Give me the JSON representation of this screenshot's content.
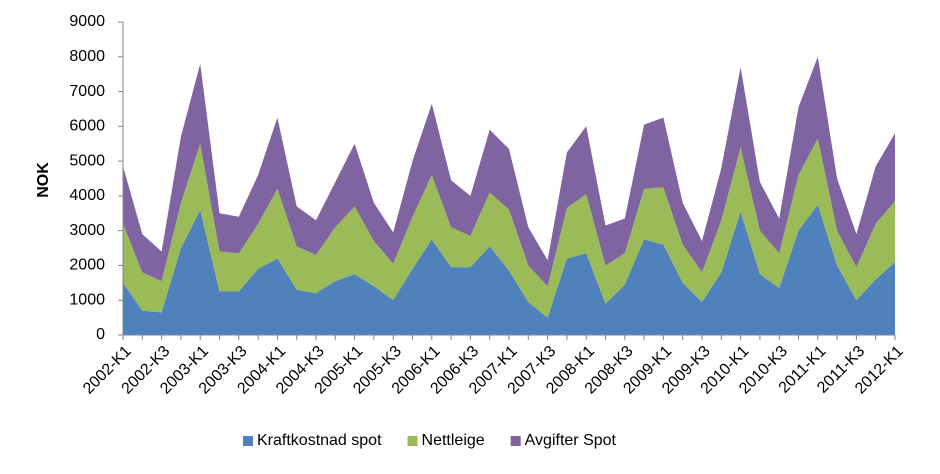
{
  "chart_data": {
    "type": "stacked-area",
    "y_label": "NOK",
    "categories": [
      "2002-K1",
      null,
      "2002-K3",
      null,
      "2003-K1",
      null,
      "2003-K3",
      null,
      "2004-K1",
      null,
      "2004-K3",
      null,
      "2005-K1",
      null,
      "2005-K3",
      null,
      "2006-K1",
      null,
      "2006-K3",
      null,
      "2007-K1",
      null,
      "2007-K3",
      null,
      "2008-K1",
      null,
      "2008-K3",
      null,
      "2009-K1",
      null,
      "2009-K3",
      null,
      "2010-K1",
      null,
      "2010-K3",
      null,
      "2011-K1",
      null,
      "2011-K3",
      null,
      "2012-K1"
    ],
    "series": [
      {
        "name": "Kraftkostnad spot",
        "color": "#4f81bd",
        "values": [
          1500,
          700,
          650,
          2500,
          3600,
          1250,
          1250,
          1900,
          2200,
          1300,
          1200,
          1550,
          1750,
          1400,
          1000,
          1900,
          2750,
          1950,
          1950,
          2550,
          1850,
          950,
          500,
          2200,
          2350,
          900,
          1450,
          2750,
          2600,
          1500,
          950,
          1800,
          3550,
          1750,
          1350,
          3000,
          3750,
          2000,
          1000,
          1600,
          2100
        ]
      },
      {
        "name": "Nettleige",
        "color": "#9bbb59",
        "values": [
          1700,
          1100,
          900,
          1300,
          1900,
          1150,
          1100,
          1300,
          2000,
          1250,
          1100,
          1550,
          1950,
          1300,
          1050,
          1500,
          1850,
          1150,
          900,
          1550,
          1750,
          1050,
          900,
          1450,
          1700,
          1100,
          900,
          1450,
          1650,
          1100,
          850,
          1500,
          1850,
          1250,
          1000,
          1600,
          1900,
          1000,
          950,
          1600,
          1750
        ]
      },
      {
        "name": "Avgifter Spot",
        "color": "#8064a2",
        "values": [
          1650,
          1100,
          850,
          1900,
          2300,
          1100,
          1050,
          1400,
          2050,
          1150,
          1000,
          1300,
          1800,
          1100,
          900,
          1600,
          2050,
          1350,
          1150,
          1800,
          1750,
          1100,
          750,
          1600,
          1950,
          1150,
          1000,
          1850,
          2000,
          1200,
          900,
          1500,
          2300,
          1400,
          1000,
          1950,
          2350,
          1500,
          950,
          1650,
          1950
        ]
      }
    ],
    "ylim": [
      0,
      9000
    ],
    "yticks": [
      0,
      1000,
      2000,
      3000,
      4000,
      5000,
      6000,
      7000,
      8000,
      9000
    ],
    "legend": "bottom"
  }
}
